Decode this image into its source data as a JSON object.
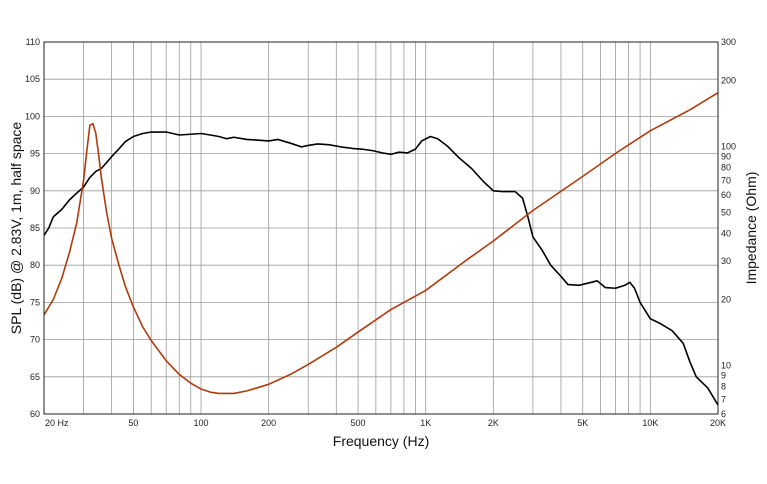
{
  "chart_data": {
    "type": "line",
    "title": "",
    "xlabel": "Frequency (Hz)",
    "ylabel": "SPL (dB) @ 2.83V, 1m, half space",
    "y2label": "Impedance (Ohm)",
    "xscale": "log",
    "xlim": [
      20,
      20000
    ],
    "ylim": [
      60,
      110
    ],
    "y2scale": "log",
    "y2lim": [
      6,
      300
    ],
    "grid": true,
    "legend": "none",
    "x_tick_labels": [
      {
        "value": 20,
        "label": "20  Hz"
      },
      {
        "value": 50,
        "label": "50"
      },
      {
        "value": 100,
        "label": "100"
      },
      {
        "value": 200,
        "label": "200"
      },
      {
        "value": 500,
        "label": "500"
      },
      {
        "value": 1000,
        "label": "1K"
      },
      {
        "value": 2000,
        "label": "2K"
      },
      {
        "value": 5000,
        "label": "5K"
      },
      {
        "value": 10000,
        "label": "10K"
      },
      {
        "value": 20000,
        "label": "20K"
      }
    ],
    "y_tick_labels": [
      {
        "value": 60,
        "label": "60"
      },
      {
        "value": 65,
        "label": "65"
      },
      {
        "value": 70,
        "label": "70"
      },
      {
        "value": 75,
        "label": "75"
      },
      {
        "value": 80,
        "label": "80"
      },
      {
        "value": 85,
        "label": "85"
      },
      {
        "value": 90,
        "label": "90"
      },
      {
        "value": 95,
        "label": "95"
      },
      {
        "value": 100,
        "label": "100"
      },
      {
        "value": 105,
        "label": "105"
      },
      {
        "value": 110,
        "label": "110"
      }
    ],
    "y2_tick_labels": [
      {
        "value": 6,
        "label": "6"
      },
      {
        "value": 7,
        "label": "7"
      },
      {
        "value": 8,
        "label": "8"
      },
      {
        "value": 9,
        "label": "9"
      },
      {
        "value": 10,
        "label": "10"
      },
      {
        "value": 20,
        "label": "20"
      },
      {
        "value": 30,
        "label": "30"
      },
      {
        "value": 40,
        "label": "40"
      },
      {
        "value": 50,
        "label": "50"
      },
      {
        "value": 60,
        "label": "60"
      },
      {
        "value": 70,
        "label": "70"
      },
      {
        "value": 80,
        "label": "80"
      },
      {
        "value": 90,
        "label": "90"
      },
      {
        "value": 100,
        "label": "100"
      },
      {
        "value": 200,
        "label": "200"
      },
      {
        "value": 300,
        "label": "300"
      }
    ],
    "series": [
      {
        "axis": "left",
        "color": "#000000",
        "points": [
          [
            20,
            84
          ],
          [
            21,
            85
          ],
          [
            22,
            86.5
          ],
          [
            24,
            87.5
          ],
          [
            26,
            88.8
          ],
          [
            28,
            89.7
          ],
          [
            30,
            90.5
          ],
          [
            32,
            91.8
          ],
          [
            34,
            92.6
          ],
          [
            36,
            93
          ],
          [
            38,
            93.8
          ],
          [
            40,
            94.6
          ],
          [
            43,
            95.6
          ],
          [
            46,
            96.6
          ],
          [
            50,
            97.3
          ],
          [
            55,
            97.7
          ],
          [
            60,
            97.9
          ],
          [
            70,
            97.9
          ],
          [
            80,
            97.5
          ],
          [
            90,
            97.6
          ],
          [
            100,
            97.7
          ],
          [
            110,
            97.5
          ],
          [
            120,
            97.3
          ],
          [
            130,
            97
          ],
          [
            140,
            97.2
          ],
          [
            160,
            96.9
          ],
          [
            180,
            96.8
          ],
          [
            200,
            96.7
          ],
          [
            220,
            96.9
          ],
          [
            250,
            96.4
          ],
          [
            280,
            95.9
          ],
          [
            300,
            96.1
          ],
          [
            330,
            96.3
          ],
          [
            370,
            96.2
          ],
          [
            420,
            95.9
          ],
          [
            470,
            95.7
          ],
          [
            520,
            95.6
          ],
          [
            580,
            95.4
          ],
          [
            640,
            95.1
          ],
          [
            700,
            94.9
          ],
          [
            760,
            95.2
          ],
          [
            830,
            95.1
          ],
          [
            900,
            95.6
          ],
          [
            960,
            96.7
          ],
          [
            1050,
            97.3
          ],
          [
            1130,
            97
          ],
          [
            1250,
            96
          ],
          [
            1400,
            94.5
          ],
          [
            1600,
            93
          ],
          [
            1800,
            91.3
          ],
          [
            2000,
            90
          ],
          [
            2200,
            89.9
          ],
          [
            2500,
            89.9
          ],
          [
            2700,
            89
          ],
          [
            2850,
            86.5
          ],
          [
            3000,
            83.8
          ],
          [
            3300,
            82
          ],
          [
            3600,
            80
          ],
          [
            4000,
            78.5
          ],
          [
            4300,
            77.4
          ],
          [
            4800,
            77.3
          ],
          [
            5300,
            77.6
          ],
          [
            5800,
            77.9
          ],
          [
            6300,
            77
          ],
          [
            7000,
            76.9
          ],
          [
            7700,
            77.3
          ],
          [
            8100,
            77.7
          ],
          [
            8500,
            76.9
          ],
          [
            9000,
            75
          ],
          [
            10000,
            72.8
          ],
          [
            11000,
            72.2
          ],
          [
            12500,
            71.2
          ],
          [
            14000,
            69.5
          ],
          [
            15000,
            67
          ],
          [
            16000,
            65
          ],
          [
            18000,
            63.5
          ],
          [
            20000,
            61.2
          ]
        ]
      },
      {
        "axis": "right",
        "color": "#b03a0c",
        "points": [
          [
            20,
            17
          ],
          [
            22,
            20
          ],
          [
            24,
            25
          ],
          [
            26,
            33
          ],
          [
            28,
            45
          ],
          [
            30,
            70
          ],
          [
            31,
            95
          ],
          [
            32,
            125
          ],
          [
            33,
            127
          ],
          [
            34,
            115
          ],
          [
            35,
            92
          ],
          [
            36,
            72
          ],
          [
            38,
            50
          ],
          [
            40,
            38
          ],
          [
            43,
            29
          ],
          [
            46,
            23
          ],
          [
            50,
            18.5
          ],
          [
            55,
            15
          ],
          [
            60,
            13
          ],
          [
            70,
            10.5
          ],
          [
            80,
            9.1
          ],
          [
            90,
            8.3
          ],
          [
            100,
            7.8
          ],
          [
            110,
            7.55
          ],
          [
            120,
            7.45
          ],
          [
            140,
            7.45
          ],
          [
            160,
            7.65
          ],
          [
            200,
            8.2
          ],
          [
            250,
            9.1
          ],
          [
            300,
            10.1
          ],
          [
            400,
            12.1
          ],
          [
            500,
            14.2
          ],
          [
            700,
            18
          ],
          [
            1000,
            22
          ],
          [
            1500,
            30
          ],
          [
            2000,
            37
          ],
          [
            3000,
            51
          ],
          [
            5000,
            73
          ],
          [
            7000,
            93
          ],
          [
            10000,
            118
          ],
          [
            15000,
            147
          ],
          [
            20000,
            176
          ]
        ]
      }
    ]
  }
}
